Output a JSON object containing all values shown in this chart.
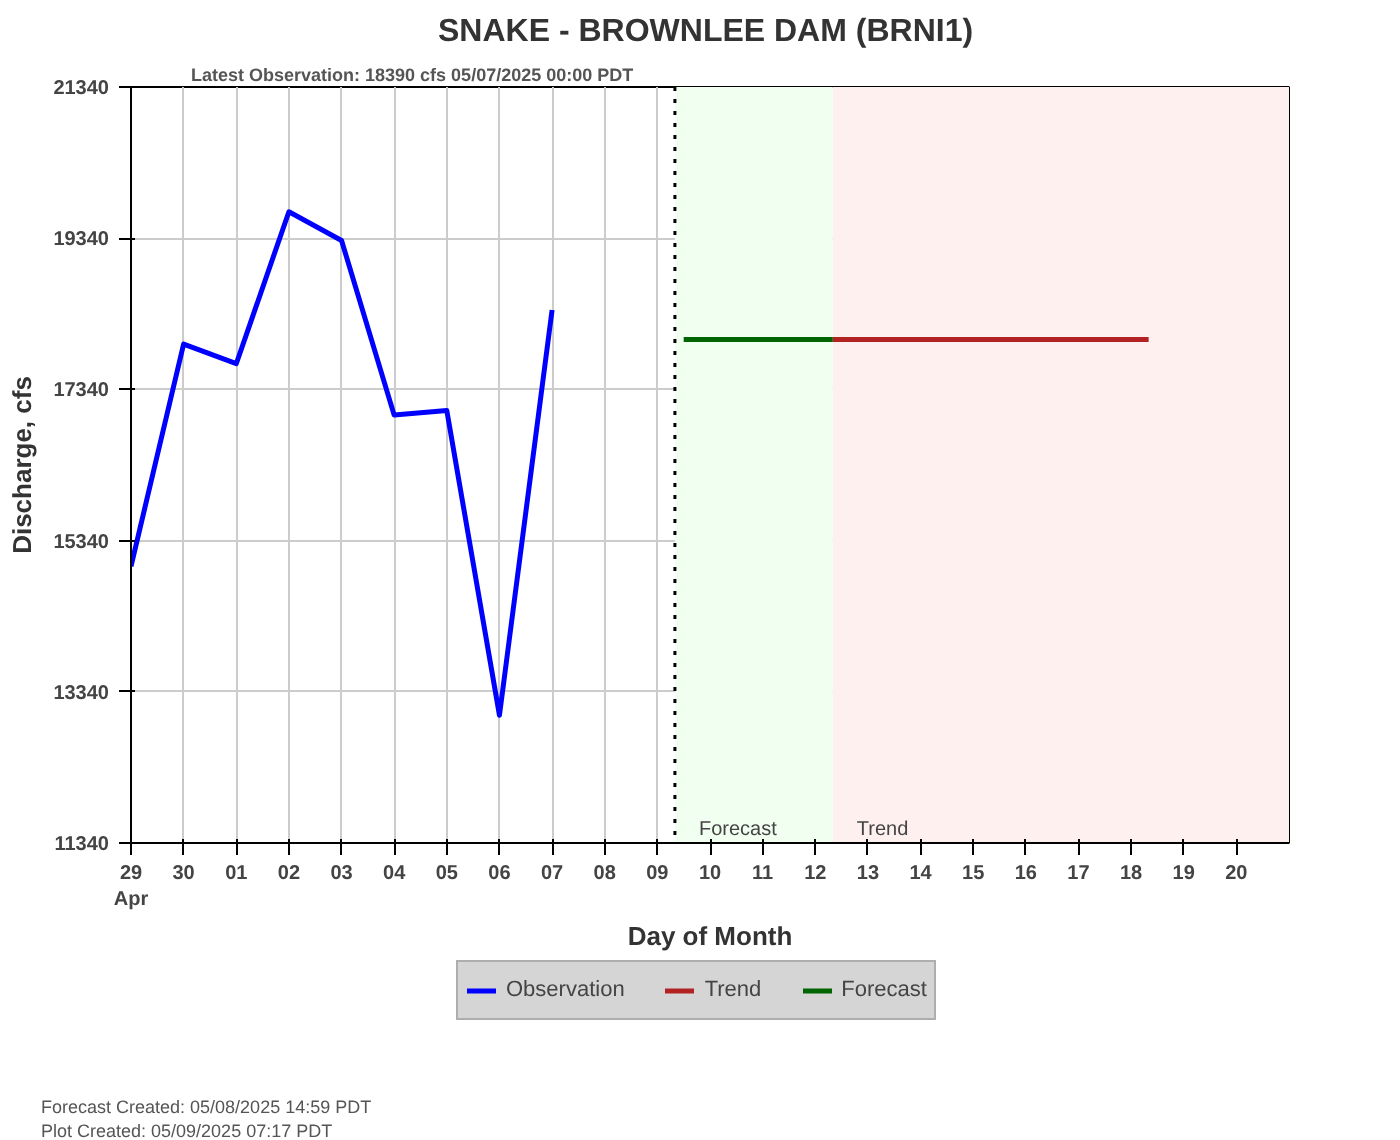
{
  "chart_data": {
    "type": "line",
    "title": "SNAKE - BROWNLEE DAM  (BRNI1)",
    "xlabel": "Day of Month",
    "ylabel": "Discharge, cfs",
    "annotations": [
      "Latest Observation: 18390 cfs 05/07/2025 00:00 PDT",
      "Forecast Created: 05/08/2025 14:59 PDT",
      "Plot Created: 05/09/2025 07:17 PDT"
    ],
    "series": [
      {
        "name": "Observation",
        "color": "#0000ff",
        "x": [
          "2025-04-29",
          "2025-04-30",
          "2025-05-01",
          "2025-05-02",
          "2025-05-03",
          "2025-05-04",
          "2025-05-05",
          "2025-05-06",
          "2025-05-07"
        ],
        "values": [
          15000,
          17940,
          17680,
          19690,
          19310,
          17000,
          17060,
          13030,
          18390
        ]
      },
      {
        "name": "Trend",
        "color": "#b22222",
        "x": [
          "2025-05-12T08:00",
          "2025-05-18T08:00"
        ],
        "values": [
          18000,
          18000
        ]
      },
      {
        "name": "Forecast",
        "color": "#006400",
        "x": [
          "2025-05-09T12:00",
          "2025-05-12T08:00"
        ],
        "values": [
          18000,
          18000
        ]
      }
    ],
    "bands": [
      {
        "axis": "x",
        "from": "2025-05-09T08:00",
        "to": "2025-05-12T08:00",
        "label": "Forecast",
        "color": "#f0fff0"
      },
      {
        "axis": "x",
        "from": "2025-05-12T08:00",
        "to": "2025-05-21",
        "label": "Trend",
        "color": "#fff0f0"
      }
    ],
    "ref_lines": [
      {
        "axis": "x",
        "value": "2025-05-09T08:00",
        "color": "#000000",
        "line_style": "dotted"
      }
    ],
    "xlim": [
      "2025-04-29",
      "2025-05-21"
    ],
    "xticks": [
      {
        "value": "2025-04-29",
        "label": "29\nApr"
      },
      {
        "value": "2025-04-30",
        "label": "30"
      },
      {
        "value": "2025-05-01",
        "label": "01"
      },
      {
        "value": "2025-05-02",
        "label": "02"
      },
      {
        "value": "2025-05-03",
        "label": "03"
      },
      {
        "value": "2025-05-04",
        "label": "04"
      },
      {
        "value": "2025-05-05",
        "label": "05"
      },
      {
        "value": "2025-05-06",
        "label": "06"
      },
      {
        "value": "2025-05-07",
        "label": "07"
      },
      {
        "value": "2025-05-08",
        "label": "08"
      },
      {
        "value": "2025-05-09",
        "label": "09"
      },
      {
        "value": "2025-05-10",
        "label": "10"
      },
      {
        "value": "2025-05-11",
        "label": "11"
      },
      {
        "value": "2025-05-12",
        "label": "12"
      },
      {
        "value": "2025-05-13",
        "label": "13"
      },
      {
        "value": "2025-05-14",
        "label": "14"
      },
      {
        "value": "2025-05-15",
        "label": "15"
      },
      {
        "value": "2025-05-16",
        "label": "16"
      },
      {
        "value": "2025-05-17",
        "label": "17"
      },
      {
        "value": "2025-05-18",
        "label": "18"
      },
      {
        "value": "2025-05-19",
        "label": "19"
      },
      {
        "value": "2025-05-20",
        "label": "20"
      }
    ],
    "ylim": [
      11340,
      21340
    ],
    "yticks": [
      11340,
      13340,
      15340,
      17340,
      19340,
      21340
    ],
    "grid": true,
    "legend": "bottom",
    "marker": "none",
    "line_style": "solid"
  }
}
